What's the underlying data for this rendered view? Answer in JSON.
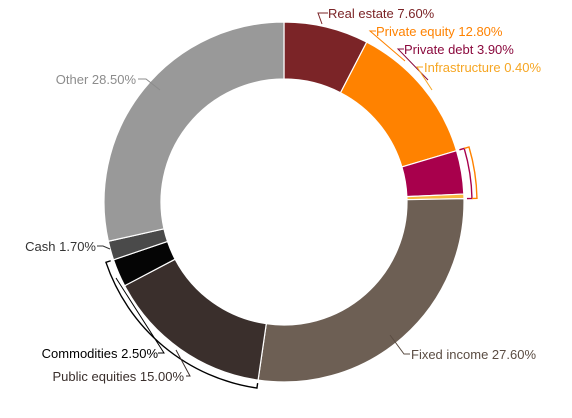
{
  "chart_data": {
    "type": "pie",
    "title": "",
    "hole": true,
    "slices": [
      {
        "name": "Real estate",
        "value": 7.6,
        "label": "Real estate 7.60%",
        "color": "#7b2427",
        "label_color": "#7b2427"
      },
      {
        "name": "Private equity",
        "value": 12.8,
        "label": "Private equity 12.80%",
        "color": "#ff8200",
        "label_color": "#ff8200"
      },
      {
        "name": "Private debt",
        "value": 3.9,
        "label": "Private debt 3.90%",
        "color": "#a8004c",
        "label_color": "#8b0a3e"
      },
      {
        "name": "Infrastructure",
        "value": 0.4,
        "label": "Infrastructure 0.40%",
        "color": "#f6b840",
        "label_color": "#f6a623"
      },
      {
        "name": "Fixed income",
        "value": 27.6,
        "label": "Fixed income 27.60%",
        "color": "#6d5f54",
        "label_color": "#5b4d43"
      },
      {
        "name": "Public equities",
        "value": 15.0,
        "label": "Public equities 15.00%",
        "color": "#3a2f2c",
        "label_color": "#3a2f2c"
      },
      {
        "name": "Commodities",
        "value": 2.5,
        "label": "Commodities 2.50%",
        "color": "#050505",
        "label_color": "#000000"
      },
      {
        "name": "Cash",
        "value": 1.7,
        "label": "Cash 1.70%",
        "color": "#4a4a4a",
        "label_color": "#333333"
      },
      {
        "name": "Other",
        "value": 28.5,
        "label": "Other 28.50%",
        "color": "#999999",
        "label_color": "#8c8c8c"
      }
    ],
    "groups": [
      {
        "members": [
          "Private debt",
          "Infrastructure"
        ],
        "color": "#a8004c"
      },
      {
        "members": [
          "Private debt",
          "Infrastructure"
        ],
        "color": "#ff8200",
        "outer": true
      },
      {
        "members": [
          "Commodities",
          "Public equities"
        ],
        "color": "#000000"
      }
    ]
  }
}
